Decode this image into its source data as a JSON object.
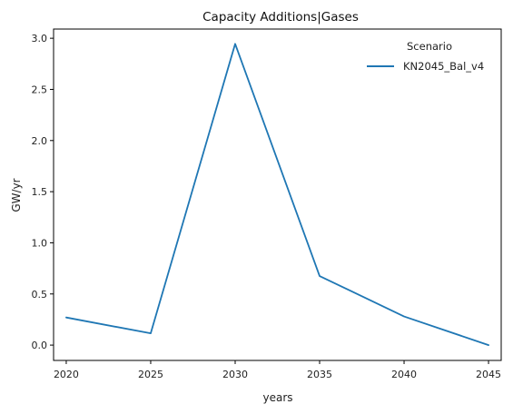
{
  "chart_data": {
    "type": "line",
    "title": "Capacity Additions|Gases",
    "xlabel": "years",
    "ylabel": "GW/yr",
    "x": [
      2020,
      2025,
      2030,
      2035,
      2040,
      2045
    ],
    "x_ticks": [
      "2020",
      "2025",
      "2030",
      "2035",
      "2040",
      "2045"
    ],
    "xlim": [
      2019.25,
      2045.75
    ],
    "y_ticks": [
      "0.0",
      "0.5",
      "1.0",
      "1.5",
      "2.0",
      "2.5",
      "3.0"
    ],
    "ylim": [
      -0.15,
      3.09
    ],
    "grid": false,
    "legend": {
      "title": "Scenario",
      "placement": "top-right"
    },
    "series": [
      {
        "name": "KN2045_Bal_v4",
        "color": "#1f77b4",
        "values": [
          0.27,
          0.115,
          2.945,
          0.675,
          0.28,
          0.0
        ]
      }
    ]
  }
}
